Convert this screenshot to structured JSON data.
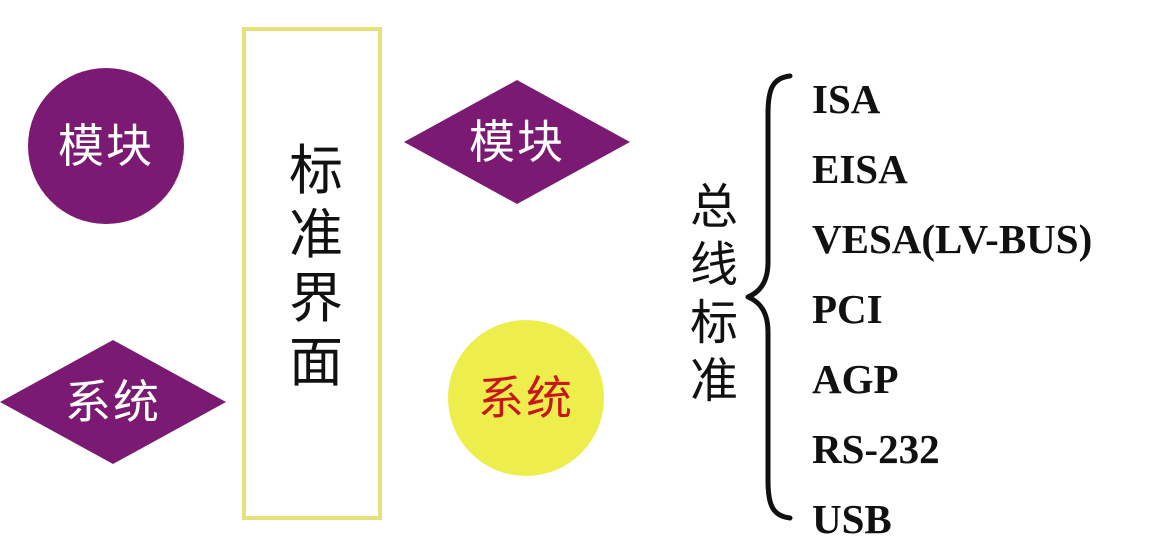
{
  "diagram": {
    "module_circle": {
      "label": "模块",
      "fill": "#7b1a72",
      "text_color": "#ffffff"
    },
    "system_diamond": {
      "label": "系统",
      "fill": "#7b1a72",
      "text_color": "#ffffff"
    },
    "standard_box": {
      "label": "标准界面",
      "border_color": "#e8e07a"
    },
    "module_diamond": {
      "label": "模块",
      "fill": "#7b1a72",
      "text_color": "#ffffff"
    },
    "system_circle": {
      "label": "系统",
      "fill": "#eded4b",
      "text_color": "#c8161d"
    },
    "bus_standards": {
      "title": "总线标准",
      "items": [
        "ISA",
        "EISA",
        "VESA(LV-BUS)",
        "PCI",
        "AGP",
        "RS-232",
        "USB"
      ]
    }
  }
}
